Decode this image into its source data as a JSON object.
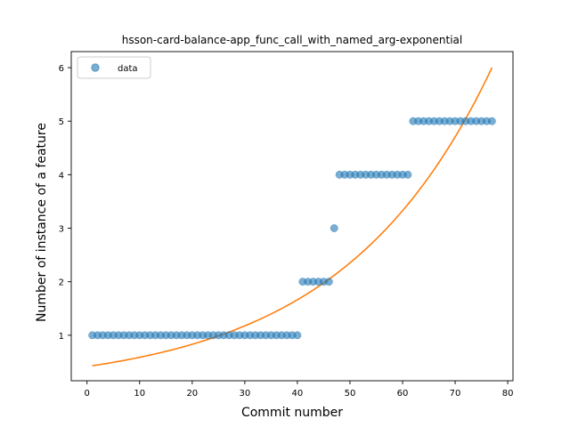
{
  "chart_data": {
    "type": "scatter",
    "title": "hsson-card-balance-app_func_call_with_named_arg-exponential",
    "xlabel": "Commit number",
    "ylabel": "Number of instance of a feature",
    "xlim": [
      -3,
      81
    ],
    "ylim": [
      0.15,
      6.3
    ],
    "xticks": [
      0,
      10,
      20,
      30,
      40,
      50,
      60,
      70,
      80
    ],
    "yticks": [
      1,
      2,
      3,
      4,
      5,
      6
    ],
    "grid": false,
    "legend": {
      "placement": "top-left",
      "entries": [
        "data"
      ]
    },
    "series": [
      {
        "name": "data",
        "kind": "scatter",
        "color": "#1f77b4",
        "points": [
          [
            1,
            1
          ],
          [
            2,
            1
          ],
          [
            3,
            1
          ],
          [
            4,
            1
          ],
          [
            5,
            1
          ],
          [
            6,
            1
          ],
          [
            7,
            1
          ],
          [
            8,
            1
          ],
          [
            9,
            1
          ],
          [
            10,
            1
          ],
          [
            11,
            1
          ],
          [
            12,
            1
          ],
          [
            13,
            1
          ],
          [
            14,
            1
          ],
          [
            15,
            1
          ],
          [
            16,
            1
          ],
          [
            17,
            1
          ],
          [
            18,
            1
          ],
          [
            19,
            1
          ],
          [
            20,
            1
          ],
          [
            21,
            1
          ],
          [
            22,
            1
          ],
          [
            23,
            1
          ],
          [
            24,
            1
          ],
          [
            25,
            1
          ],
          [
            26,
            1
          ],
          [
            27,
            1
          ],
          [
            28,
            1
          ],
          [
            29,
            1
          ],
          [
            30,
            1
          ],
          [
            31,
            1
          ],
          [
            32,
            1
          ],
          [
            33,
            1
          ],
          [
            34,
            1
          ],
          [
            35,
            1
          ],
          [
            36,
            1
          ],
          [
            37,
            1
          ],
          [
            38,
            1
          ],
          [
            39,
            1
          ],
          [
            40,
            1
          ],
          [
            41,
            2
          ],
          [
            42,
            2
          ],
          [
            43,
            2
          ],
          [
            44,
            2
          ],
          [
            45,
            2
          ],
          [
            46,
            2
          ],
          [
            47,
            3
          ],
          [
            48,
            4
          ],
          [
            49,
            4
          ],
          [
            50,
            4
          ],
          [
            51,
            4
          ],
          [
            52,
            4
          ],
          [
            53,
            4
          ],
          [
            54,
            4
          ],
          [
            55,
            4
          ],
          [
            56,
            4
          ],
          [
            57,
            4
          ],
          [
            58,
            4
          ],
          [
            59,
            4
          ],
          [
            60,
            4
          ],
          [
            61,
            4
          ],
          [
            62,
            5
          ],
          [
            63,
            5
          ],
          [
            64,
            5
          ],
          [
            65,
            5
          ],
          [
            66,
            5
          ],
          [
            67,
            5
          ],
          [
            68,
            5
          ],
          [
            69,
            5
          ],
          [
            70,
            5
          ],
          [
            71,
            5
          ],
          [
            72,
            5
          ],
          [
            73,
            5
          ],
          [
            74,
            5
          ],
          [
            75,
            5
          ],
          [
            76,
            5
          ],
          [
            77,
            5
          ]
        ]
      },
      {
        "kind": "line",
        "color": "#ff7f0e",
        "fit": "exponential",
        "x_range": [
          1,
          77
        ],
        "y_start": 0.43,
        "y_end": 6.0
      }
    ]
  }
}
